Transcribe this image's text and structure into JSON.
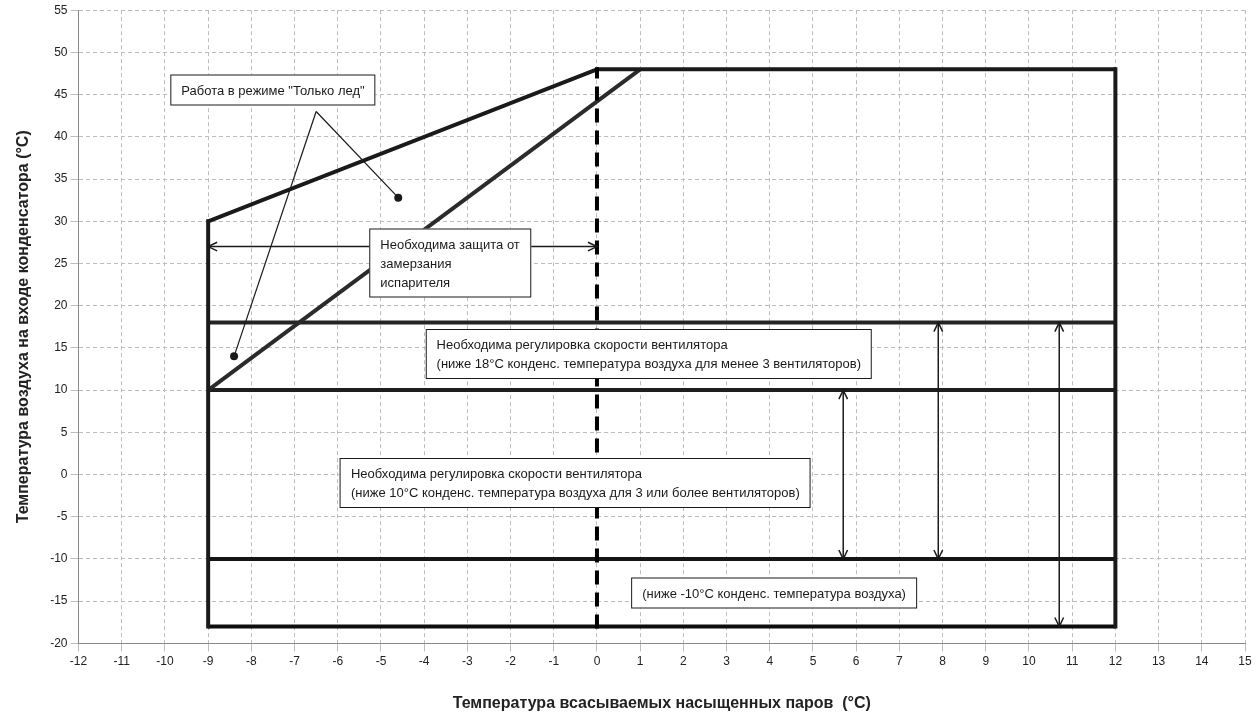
{
  "chart_data": {
    "type": "line",
    "xlabel": "Температура всасываемых насыщенных паров  (°C)",
    "ylabel": "Температура воздуха на входе конденсатора (°C)",
    "xlim": [
      -12,
      15
    ],
    "xticks": [
      -12,
      -11,
      -10,
      -9,
      -8,
      -7,
      -6,
      -5,
      -4,
      -3,
      -2,
      -1,
      0,
      1,
      2,
      3,
      4,
      5,
      6,
      7,
      8,
      9,
      10,
      11,
      12,
      13,
      14,
      15
    ],
    "ylim": [
      -20,
      55
    ],
    "yticks": [
      -20,
      -15,
      -10,
      -5,
      0,
      5,
      10,
      15,
      20,
      25,
      30,
      35,
      40,
      45,
      50,
      55
    ],
    "grid": true,
    "legend": false,
    "series": [
      {
        "color": "#1a1a1a",
        "x": [
          -9,
          0,
          12
        ],
        "values": [
          30,
          48,
          48
        ]
      },
      {
        "color": "#2b2b2b",
        "x": [
          -9,
          1
        ],
        "values": [
          10,
          48
        ]
      },
      {
        "color": "#242424",
        "x": [
          -9,
          12
        ],
        "values": [
          18,
          18
        ]
      },
      {
        "color": "#1e1e1e",
        "x": [
          -9,
          12
        ],
        "values": [
          10,
          10
        ]
      },
      {
        "color": "#151515",
        "x": [
          -9,
          12
        ],
        "values": [
          -10,
          -10
        ]
      },
      {
        "color": "#0d0d0d",
        "x": [
          -9,
          12
        ],
        "values": [
          -18,
          -18
        ]
      }
    ],
    "ref_lines": [
      {
        "axis": "x",
        "value": -9,
        "color": "#1a1a1a"
      },
      {
        "axis": "x",
        "value": 12,
        "color": "#1a1a1a"
      },
      {
        "axis": "x",
        "value": 0,
        "color": "#000000",
        "line_style": "dashed"
      }
    ],
    "annotations": [
      "Работа в режиме \"Только лед\"",
      "Необходима защита от\nзамерзания\nиспарителя",
      "Необходима регулировка скорости вентилятора\n(ниже 18°C конденс. температура воздуха для менее 3 вентиляторов)",
      "Необходима регулировка скорости вентилятора\n(ниже 10°C конденс. температура воздуха для 3 или более вентиляторов)",
      "(ниже -10°C конденс. температура воздуха)"
    ]
  }
}
